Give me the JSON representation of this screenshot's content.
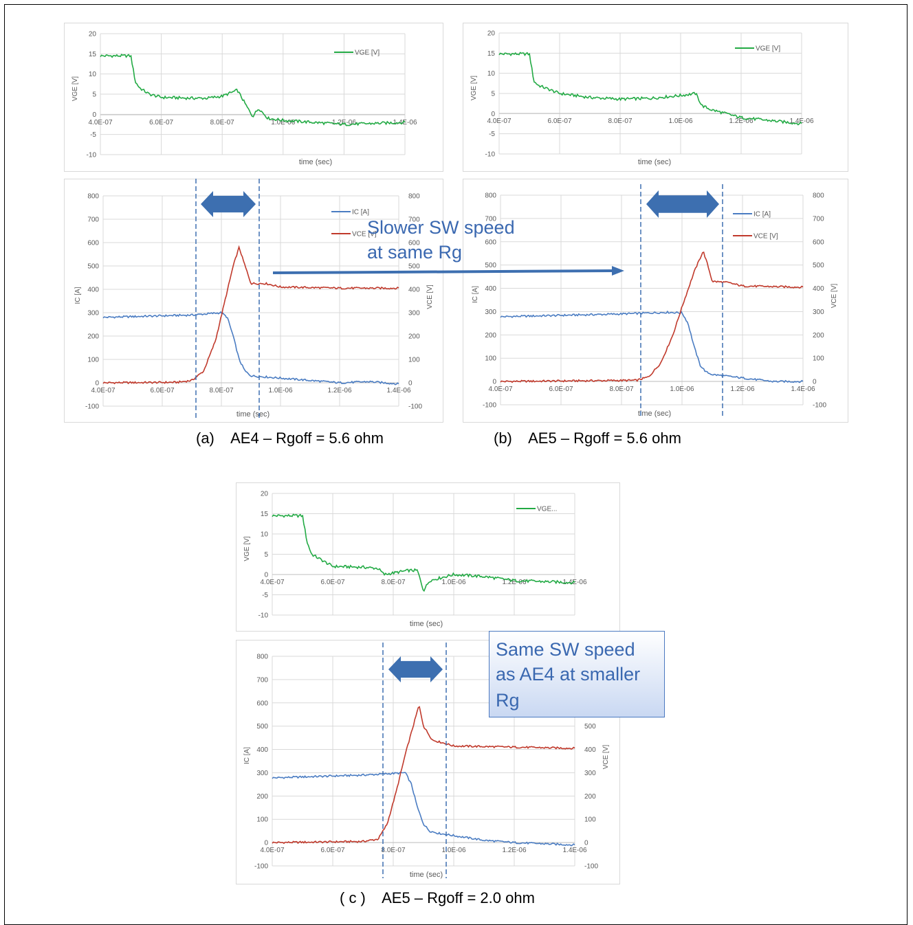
{
  "captions": {
    "a": "(a)    AE4 – Rgoff = 5.6 ohm",
    "b": "(b)    AE5 – Rgoff = 5.6 ohm",
    "c": "( c )    AE5 – Rgoff = 2.0 ohm"
  },
  "annotations": {
    "slower_line1": "Slower SW speed",
    "slower_line2": "at same Rg",
    "same_line1": "Same SW speed",
    "same_line2": "as AE4 at smaller",
    "same_line3": "Rg"
  },
  "colors": {
    "vge": "#22aa44",
    "ic": "#4a7cc2",
    "vce": "#c0392b",
    "arrow": "#3d6fb0"
  },
  "chart_data": [
    {
      "id": "a-vge",
      "type": "line",
      "xlabel": "time (sec)",
      "ylabel": "VGE [V]",
      "xlim": [
        4e-07,
        1.4e-06
      ],
      "ylim": [
        -10,
        20
      ],
      "x_ticks": [
        "4.0E-07",
        "6.0E-07",
        "8.0E-07",
        "1.0E-06",
        "1.2E-06",
        "1.4E-06"
      ],
      "y_ticks": [
        "20",
        "15",
        "10",
        "5",
        "0",
        "-5",
        "-10"
      ],
      "legend": "top-right",
      "series": [
        {
          "name": "VGE [V]",
          "color": "#22aa44",
          "x": [
            4e-07,
            5e-07,
            5.15e-07,
            5.3e-07,
            5.6e-07,
            6e-07,
            7e-07,
            7.5e-07,
            8e-07,
            8.5e-07,
            8.8e-07,
            9e-07,
            9.2e-07,
            9.5e-07,
            1e-06,
            1.2e-06,
            1.4e-06
          ],
          "y": [
            14.5,
            14.5,
            8,
            6.5,
            5,
            4.2,
            4,
            4,
            4.5,
            6,
            2,
            -0.5,
            1.5,
            -1,
            -1.5,
            -2.5,
            -2
          ]
        }
      ]
    },
    {
      "id": "a-icvce",
      "type": "line",
      "xlabel": "time (sec)",
      "ylabel": "IC [A]",
      "y2label": "VCE [V]",
      "xlim": [
        4e-07,
        1.4e-06
      ],
      "ylim": [
        -100,
        800
      ],
      "y2lim": [
        -100,
        800
      ],
      "x_ticks": [
        "4.0E-07",
        "6.0E-07",
        "8.0E-07",
        "1.0E-06",
        "1.2E-06",
        "1.4E-06"
      ],
      "y_ticks": [
        "800",
        "700",
        "600",
        "500",
        "400",
        "300",
        "200",
        "100",
        "0",
        "-100"
      ],
      "legend": "top-right",
      "series": [
        {
          "name": "IC [A]",
          "color": "#4a7cc2",
          "x": [
            4e-07,
            7e-07,
            8e-07,
            8.2e-07,
            8.4e-07,
            8.6e-07,
            8.8e-07,
            9e-07,
            9.5e-07,
            1e-06,
            1.1e-06,
            1.2e-06,
            1.3e-06,
            1.4e-06
          ],
          "y": [
            280,
            290,
            300,
            280,
            200,
            100,
            50,
            30,
            25,
            20,
            10,
            0,
            5,
            -5
          ]
        },
        {
          "name": "VCE [V]",
          "color": "#c0392b",
          "x": [
            4e-07,
            6.5e-07,
            7e-07,
            7.4e-07,
            7.8e-07,
            8.1e-07,
            8.4e-07,
            8.6e-07,
            8.75e-07,
            9e-07,
            9.5e-07,
            1e-06,
            1.2e-06,
            1.4e-06
          ],
          "y": [
            0,
            2,
            10,
            50,
            180,
            340,
            500,
            580,
            520,
            425,
            425,
            410,
            405,
            405
          ]
        }
      ]
    },
    {
      "id": "b-vge",
      "type": "line",
      "xlabel": "time (sec)",
      "ylabel": "VGE [V]",
      "xlim": [
        4e-07,
        1.4e-06
      ],
      "ylim": [
        -10,
        20
      ],
      "x_ticks": [
        "4.0E-07",
        "6.0E-07",
        "8.0E-07",
        "1.0E-06",
        "1.2E-06",
        "1.4E-06"
      ],
      "y_ticks": [
        "20",
        "15",
        "10",
        "5",
        "0",
        "-5",
        "-10"
      ],
      "legend": "top-right",
      "series": [
        {
          "name": "VGE [V]",
          "color": "#22aa44",
          "x": [
            4e-07,
            5e-07,
            5.15e-07,
            5.3e-07,
            6e-07,
            7e-07,
            8e-07,
            9e-07,
            1e-06,
            1.05e-06,
            1.07e-06,
            1.1e-06,
            1.15e-06,
            1.2e-06,
            1.4e-06
          ],
          "y": [
            14.8,
            14.8,
            8,
            7,
            5,
            4,
            3.6,
            3.8,
            4.5,
            5,
            2,
            1,
            0,
            -1,
            -2.5
          ]
        }
      ]
    },
    {
      "id": "b-icvce",
      "type": "line",
      "xlabel": "time (sec)",
      "ylabel": "IC [A]",
      "y2label": "VCE [V]",
      "xlim": [
        4e-07,
        1.4e-06
      ],
      "ylim": [
        -100,
        800
      ],
      "y2lim": [
        -100,
        800
      ],
      "x_ticks": [
        "4.0E-07",
        "6.0E-07",
        "8.0E-07",
        "1.0E-06",
        "1.2E-06",
        "1.4E-06"
      ],
      "y_ticks": [
        "800",
        "700",
        "600",
        "500",
        "400",
        "300",
        "200",
        "100",
        "0",
        "-100"
      ],
      "legend": "top-right",
      "series": [
        {
          "name": "IC [A]",
          "color": "#4a7cc2",
          "x": [
            4e-07,
            8e-07,
            9.5e-07,
            1e-06,
            1.02e-06,
            1.04e-06,
            1.06e-06,
            1.08e-06,
            1.1e-06,
            1.2e-06,
            1.3e-06,
            1.4e-06
          ],
          "y": [
            278,
            290,
            297,
            295,
            250,
            150,
            70,
            40,
            30,
            15,
            0,
            0
          ]
        },
        {
          "name": "VCE [V]",
          "color": "#c0392b",
          "x": [
            4e-07,
            8.5e-07,
            8.9e-07,
            9.3e-07,
            9.7e-07,
            1e-06,
            1.04e-06,
            1.07e-06,
            1.085e-06,
            1.1e-06,
            1.15e-06,
            1.2e-06,
            1.4e-06
          ],
          "y": [
            0,
            5,
            20,
            80,
            200,
            320,
            470,
            560,
            500,
            430,
            425,
            410,
            405
          ]
        }
      ]
    },
    {
      "id": "c-vge",
      "type": "line",
      "xlabel": "time (sec)",
      "ylabel": "VGE [V]",
      "xlim": [
        4e-07,
        1.4e-06
      ],
      "ylim": [
        -10,
        20
      ],
      "x_ticks": [
        "4.0E-07",
        "6.0E-07",
        "8.0E-07",
        "1.0E-06",
        "1.2E-06",
        "1.4E-06"
      ],
      "y_ticks": [
        "20",
        "15",
        "10",
        "5",
        "0",
        "-5",
        "-10"
      ],
      "legend": "top-right",
      "series": [
        {
          "name": "VGE...",
          "color": "#22aa44",
          "x": [
            4e-07,
            5e-07,
            5.15e-07,
            5.3e-07,
            6e-07,
            7e-07,
            7.5e-07,
            7.7e-07,
            8.5e-07,
            8.8e-07,
            9e-07,
            9.2e-07,
            1e-06,
            1.1e-06,
            1.2e-06,
            1.4e-06
          ],
          "y": [
            14.5,
            14.5,
            8,
            5,
            2,
            1.8,
            1.5,
            0,
            1,
            1,
            -4,
            -1.5,
            0,
            -0.5,
            -1.5,
            -2
          ]
        }
      ]
    },
    {
      "id": "c-icvce",
      "type": "line",
      "xlabel": "time (sec)",
      "ylabel": "IC [A]",
      "y2label": "VCE [V]",
      "xlim": [
        4e-07,
        1.4e-06
      ],
      "ylim": [
        -100,
        800
      ],
      "y2lim": [
        -100,
        800
      ],
      "x_ticks": [
        "4.0E-07",
        "6.0E-07",
        "8.0E-07",
        "1.0E-06",
        "1.2E-06",
        "1.4E-06"
      ],
      "y_ticks": [
        "800",
        "700",
        "600",
        "500",
        "400",
        "300",
        "200",
        "100",
        "0",
        "-100"
      ],
      "y2_ticks": [
        "500",
        "400",
        "300",
        "200",
        "100",
        "0",
        "-100"
      ],
      "legend": "top-right",
      "series": [
        {
          "name": "IC [A]",
          "color": "#4a7cc2",
          "x": [
            4e-07,
            7e-07,
            8.4e-07,
            8.6e-07,
            8.8e-07,
            9e-07,
            9.2e-07,
            9.5e-07,
            1e-06,
            1.1e-06,
            1.2e-06,
            1.4e-06
          ],
          "y": [
            278,
            290,
            300,
            250,
            150,
            80,
            50,
            40,
            30,
            10,
            0,
            -10
          ]
        },
        {
          "name": "VCE [V]",
          "color": "#c0392b",
          "x": [
            4e-07,
            7e-07,
            7.5e-07,
            7.8e-07,
            8.1e-07,
            8.4e-07,
            8.7e-07,
            8.85e-07,
            9e-07,
            9.3e-07,
            9.6e-07,
            1e-06,
            1.4e-06
          ],
          "y": [
            0,
            5,
            15,
            80,
            220,
            380,
            520,
            590,
            500,
            440,
            430,
            415,
            405
          ]
        }
      ]
    }
  ]
}
